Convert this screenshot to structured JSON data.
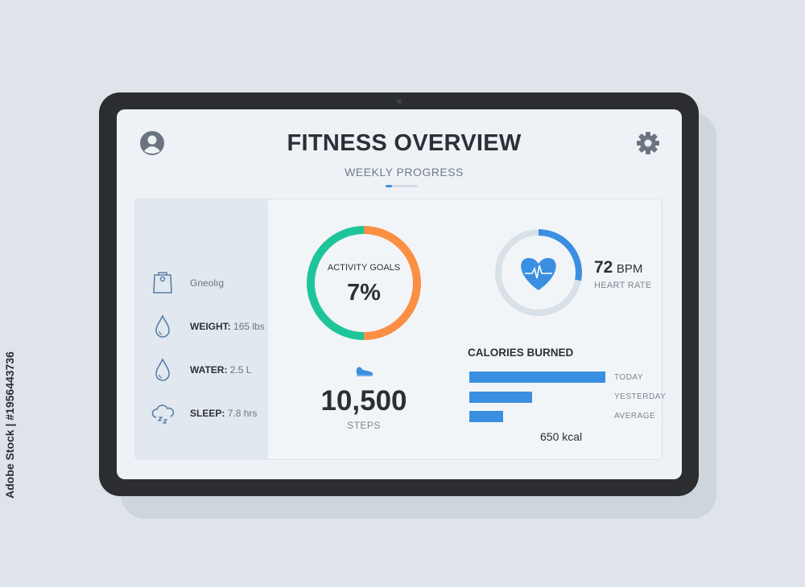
{
  "header": {
    "title": "FITNESS OVERVIEW",
    "subtitle": "WEEKLY PROGRESS",
    "page_indicator_progress": 0.2
  },
  "icons": {
    "profile": "user-avatar-icon",
    "settings": "gear-icon"
  },
  "sidebar": {
    "items": [
      {
        "icon": "scale-icon",
        "label": "",
        "value": "Gneolıg"
      },
      {
        "icon": "water-drop-icon",
        "label": "WEIGHT:",
        "value": "165 lbs"
      },
      {
        "icon": "water-drop-icon",
        "label": "WATER:",
        "value": "2.5 L"
      },
      {
        "icon": "sleep-cloud-icon",
        "label": "SLEEP:",
        "value": "7.8 hrs"
      }
    ]
  },
  "activity": {
    "label": "ACTIVITY GOALS",
    "value": "7%",
    "colors": {
      "left": "#1fc59a",
      "right": "#fb8f44"
    }
  },
  "steps": {
    "icon": "sneaker-icon",
    "value": "10,500",
    "label": "STEPS"
  },
  "heart": {
    "icon": "heart-pulse-icon",
    "value": "72",
    "unit": "BPM",
    "label": "HEART RATE",
    "ring_progress": 0.28,
    "color": "#3b8fe0"
  },
  "calories": {
    "title": "CALORIES BURNED",
    "bars": [
      {
        "label": "TODAY",
        "relative": 1.0
      },
      {
        "label": "YESTERDAY",
        "relative": 0.46
      },
      {
        "label": "AVERAGE",
        "relative": 0.25
      }
    ],
    "total": "650 kcal",
    "color": "#3b8fe0"
  },
  "watermark": "Adobe Stock | #1956443736"
}
